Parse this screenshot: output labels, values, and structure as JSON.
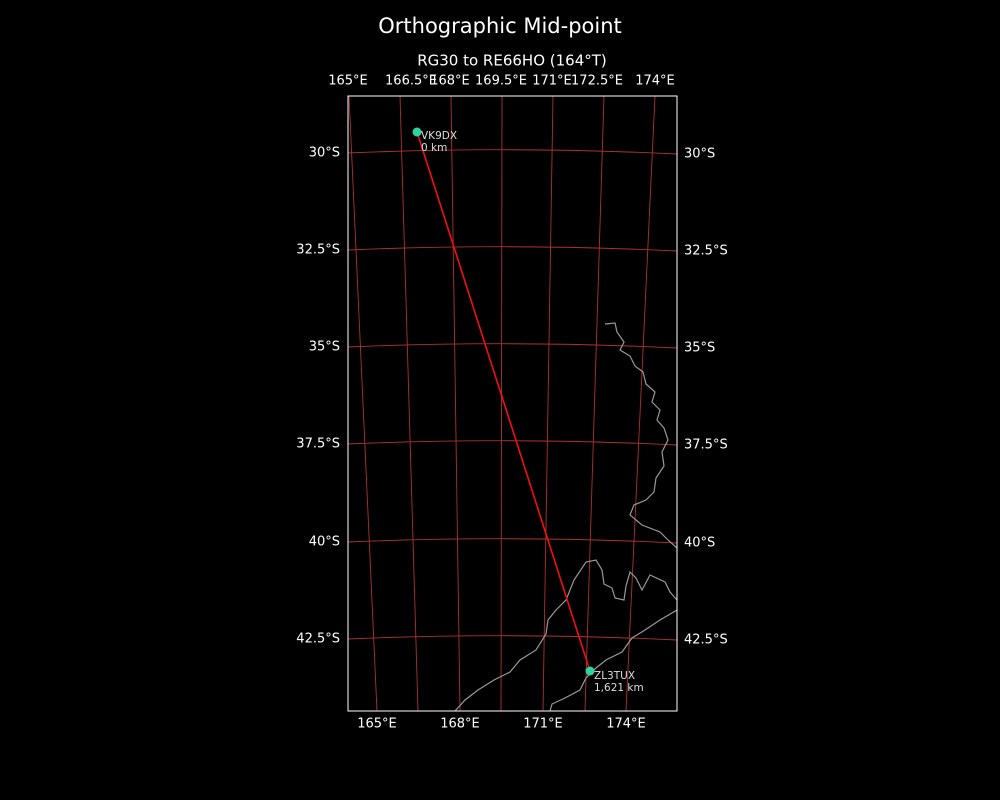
{
  "title": "Orthographic Mid-point",
  "subtitle": "RG30 to RE66HO (164°T)",
  "top_lon_labels": [
    "165°E",
    "166.5°E",
    "168°E",
    "169.5°E",
    "171°E",
    "172.5°E",
    "174°E"
  ],
  "bottom_lon_labels": [
    "165°E",
    "168°E",
    "171°E",
    "174°E"
  ],
  "lat_labels": [
    "30°S",
    "32.5°S",
    "35°S",
    "37.5°S",
    "40°S",
    "42.5°S"
  ],
  "points": [
    {
      "label": "VK9DX",
      "distance": "0 km"
    },
    {
      "label": "ZL3TUX",
      "distance": "1,621 km"
    }
  ]
}
